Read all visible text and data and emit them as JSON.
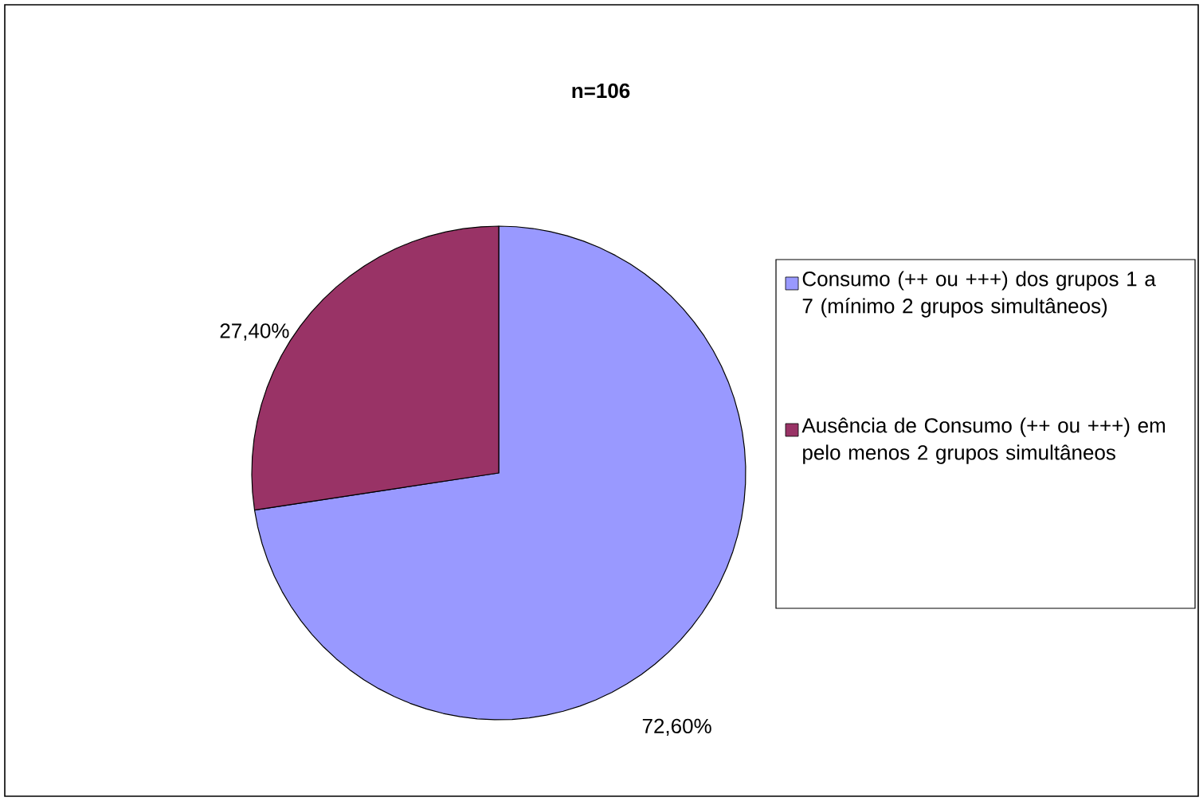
{
  "chart_data": {
    "type": "pie",
    "title": "n=106",
    "categories": [
      "Consumo (++ ou +++) dos grupos 1 a 7 (mínimo 2 grupos simultâneos)",
      "Ausência de Consumo (++ ou +++) em pelo menos 2 grupos simultâneos"
    ],
    "values": [
      72.6,
      27.4
    ],
    "colors": [
      "#9999ff",
      "#993366"
    ],
    "value_labels": [
      "72,60%",
      "27,40%"
    ],
    "legend": "right"
  }
}
